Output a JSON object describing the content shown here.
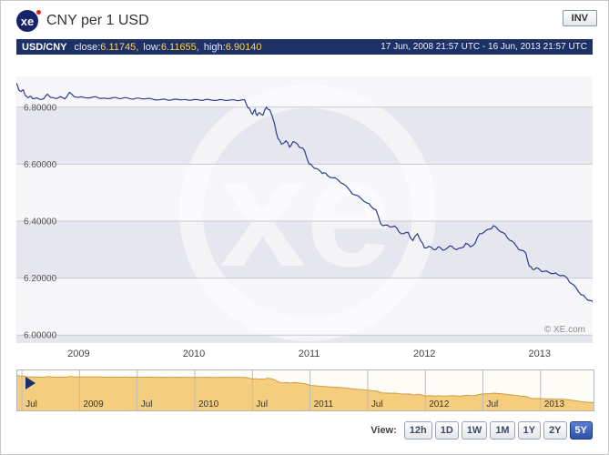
{
  "header": {
    "logo_text": "xe",
    "title": "CNY per 1 USD",
    "inv_label": "INV"
  },
  "subheader": {
    "pair": "USD/CNY",
    "close_label": "close:",
    "close_value": "6.11745,",
    "low_label": "low:",
    "low_value": "6.11655,",
    "high_label": "high:",
    "high_value": "6.90140",
    "date_range": "17 Jun, 2008 21:57 UTC - 16 Jun, 2013 21:57 UTC"
  },
  "footer": {
    "view_label": "View:",
    "ranges": [
      {
        "label": "12h",
        "active": false
      },
      {
        "label": "1D",
        "active": false
      },
      {
        "label": "1W",
        "active": false
      },
      {
        "label": "1M",
        "active": false
      },
      {
        "label": "1Y",
        "active": false
      },
      {
        "label": "2Y",
        "active": false
      },
      {
        "label": "5Y",
        "active": true
      }
    ]
  },
  "chart_data": {
    "type": "line",
    "title": "CNY per 1 USD",
    "watermark_text": "xe",
    "copyright": "© XE.com",
    "xlim": [
      2008.46,
      2013.46
    ],
    "ylim": [
      5.972,
      6.908
    ],
    "y_ticks": [
      {
        "label": "6.00000",
        "value": 6.0
      },
      {
        "label": "6.20000",
        "value": 6.2
      },
      {
        "label": "6.40000",
        "value": 6.4
      },
      {
        "label": "6.60000",
        "value": 6.6
      },
      {
        "label": "6.80000",
        "value": 6.8
      }
    ],
    "x_ticks": [
      {
        "label": "2009",
        "t": 2009.0
      },
      {
        "label": "2010",
        "t": 2010.0
      },
      {
        "label": "2011",
        "t": 2011.0
      },
      {
        "label": "2012",
        "t": 2012.0
      },
      {
        "label": "2013",
        "t": 2013.0
      }
    ],
    "nav_ticks": [
      {
        "label": "Jul",
        "t": 2008.5
      },
      {
        "label": "2009",
        "t": 2009.0
      },
      {
        "label": "Jul",
        "t": 2009.5
      },
      {
        "label": "2010",
        "t": 2010.0
      },
      {
        "label": "Jul",
        "t": 2010.5
      },
      {
        "label": "2011",
        "t": 2011.0
      },
      {
        "label": "Jul",
        "t": 2011.5
      },
      {
        "label": "2012",
        "t": 2012.0
      },
      {
        "label": "Jul",
        "t": 2012.5
      },
      {
        "label": "2013",
        "t": 2013.0
      }
    ],
    "colors": {
      "line": "#2b3e8e",
      "band_dark": "#e6e7ee",
      "band_light": "#f7f7fa",
      "grid": "#c9cad4",
      "area_fill": "#f4cd7e",
      "area_line": "#cf9f3f",
      "watermark": "rgba(255,255,255,0.55)",
      "nav_grid": "#bcbcc2",
      "marker": "#1b2f6b"
    },
    "series": [
      {
        "name": "USD/CNY",
        "points": [
          [
            2008.46,
            6.885
          ],
          [
            2008.48,
            6.862
          ],
          [
            2008.5,
            6.855
          ],
          [
            2008.52,
            6.861
          ],
          [
            2008.54,
            6.84
          ],
          [
            2008.56,
            6.833
          ],
          [
            2008.58,
            6.839
          ],
          [
            2008.6,
            6.83
          ],
          [
            2008.63,
            6.833
          ],
          [
            2008.66,
            6.828
          ],
          [
            2008.7,
            6.831
          ],
          [
            2008.73,
            6.846
          ],
          [
            2008.76,
            6.834
          ],
          [
            2008.8,
            6.83
          ],
          [
            2008.84,
            6.837
          ],
          [
            2008.88,
            6.829
          ],
          [
            2008.92,
            6.852
          ],
          [
            2008.96,
            6.837
          ],
          [
            2009.0,
            6.835
          ],
          [
            2009.05,
            6.834
          ],
          [
            2009.1,
            6.833
          ],
          [
            2009.15,
            6.837
          ],
          [
            2009.2,
            6.831
          ],
          [
            2009.25,
            6.83
          ],
          [
            2009.3,
            6.834
          ],
          [
            2009.35,
            6.83
          ],
          [
            2009.4,
            6.834
          ],
          [
            2009.45,
            6.829
          ],
          [
            2009.5,
            6.832
          ],
          [
            2009.55,
            6.829
          ],
          [
            2009.6,
            6.831
          ],
          [
            2009.65,
            6.827
          ],
          [
            2009.7,
            6.826
          ],
          [
            2009.75,
            6.828
          ],
          [
            2009.8,
            6.825
          ],
          [
            2009.85,
            6.828
          ],
          [
            2009.9,
            6.826
          ],
          [
            2009.95,
            6.825
          ],
          [
            2010.0,
            6.827
          ],
          [
            2010.05,
            6.825
          ],
          [
            2010.1,
            6.827
          ],
          [
            2010.15,
            6.825
          ],
          [
            2010.2,
            6.824
          ],
          [
            2010.25,
            6.826
          ],
          [
            2010.3,
            6.824
          ],
          [
            2010.35,
            6.826
          ],
          [
            2010.4,
            6.824
          ],
          [
            2010.44,
            6.826
          ],
          [
            2010.47,
            6.797
          ],
          [
            2010.49,
            6.789
          ],
          [
            2010.51,
            6.775
          ],
          [
            2010.53,
            6.792
          ],
          [
            2010.55,
            6.771
          ],
          [
            2010.57,
            6.781
          ],
          [
            2010.6,
            6.772
          ],
          [
            2010.63,
            6.8
          ],
          [
            2010.66,
            6.79
          ],
          [
            2010.7,
            6.742
          ],
          [
            2010.73,
            6.69
          ],
          [
            2010.76,
            6.67
          ],
          [
            2010.8,
            6.682
          ],
          [
            2010.83,
            6.66
          ],
          [
            2010.86,
            6.679
          ],
          [
            2010.9,
            6.67
          ],
          [
            2010.93,
            6.658
          ],
          [
            2010.96,
            6.648
          ],
          [
            2011.0,
            6.6
          ],
          [
            2011.03,
            6.592
          ],
          [
            2011.06,
            6.585
          ],
          [
            2011.1,
            6.574
          ],
          [
            2011.13,
            6.57
          ],
          [
            2011.16,
            6.56
          ],
          [
            2011.2,
            6.552
          ],
          [
            2011.25,
            6.545
          ],
          [
            2011.3,
            6.53
          ],
          [
            2011.35,
            6.51
          ],
          [
            2011.4,
            6.492
          ],
          [
            2011.45,
            6.48
          ],
          [
            2011.5,
            6.464
          ],
          [
            2011.54,
            6.451
          ],
          [
            2011.58,
            6.44
          ],
          [
            2011.62,
            6.392
          ],
          [
            2011.66,
            6.386
          ],
          [
            2011.7,
            6.38
          ],
          [
            2011.74,
            6.383
          ],
          [
            2011.78,
            6.362
          ],
          [
            2011.82,
            6.356
          ],
          [
            2011.86,
            6.36
          ],
          [
            2011.9,
            6.332
          ],
          [
            2011.94,
            6.356
          ],
          [
            2011.97,
            6.33
          ],
          [
            2012.0,
            6.306
          ],
          [
            2012.04,
            6.312
          ],
          [
            2012.08,
            6.3
          ],
          [
            2012.12,
            6.31
          ],
          [
            2012.16,
            6.298
          ],
          [
            2012.2,
            6.306
          ],
          [
            2012.24,
            6.312
          ],
          [
            2012.28,
            6.3
          ],
          [
            2012.32,
            6.306
          ],
          [
            2012.36,
            6.322
          ],
          [
            2012.4,
            6.31
          ],
          [
            2012.44,
            6.322
          ],
          [
            2012.48,
            6.356
          ],
          [
            2012.52,
            6.362
          ],
          [
            2012.56,
            6.372
          ],
          [
            2012.6,
            6.384
          ],
          [
            2012.64,
            6.37
          ],
          [
            2012.68,
            6.36
          ],
          [
            2012.72,
            6.342
          ],
          [
            2012.76,
            6.33
          ],
          [
            2012.8,
            6.312
          ],
          [
            2012.84,
            6.298
          ],
          [
            2012.88,
            6.288
          ],
          [
            2012.91,
            6.242
          ],
          [
            2012.94,
            6.23
          ],
          [
            2012.97,
            6.236
          ],
          [
            2013.0,
            6.23
          ],
          [
            2013.04,
            6.224
          ],
          [
            2013.08,
            6.22
          ],
          [
            2013.12,
            6.216
          ],
          [
            2013.16,
            6.212
          ],
          [
            2013.2,
            6.21
          ],
          [
            2013.24,
            6.2
          ],
          [
            2013.28,
            6.18
          ],
          [
            2013.32,
            6.164
          ],
          [
            2013.36,
            6.142
          ],
          [
            2013.4,
            6.13
          ],
          [
            2013.44,
            6.121
          ],
          [
            2013.46,
            6.117
          ]
        ]
      }
    ]
  }
}
